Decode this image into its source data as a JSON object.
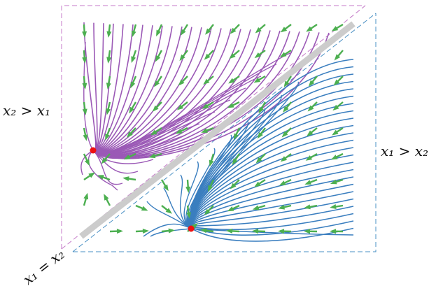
{
  "labels": {
    "upper_region": "x₂ > x₁",
    "lower_region": "x₁ > x₂",
    "diagonal": "x₁ = x₂"
  },
  "colors": {
    "upper_trajectories": "#9b59b6",
    "lower_trajectories": "#3a7ebf",
    "arrows": "#4caf50",
    "diagonal_band": "#cccccc",
    "upper_box": "#c47ac8",
    "lower_box": "#4a90c4",
    "fixed_points": "#ee1111"
  }
}
